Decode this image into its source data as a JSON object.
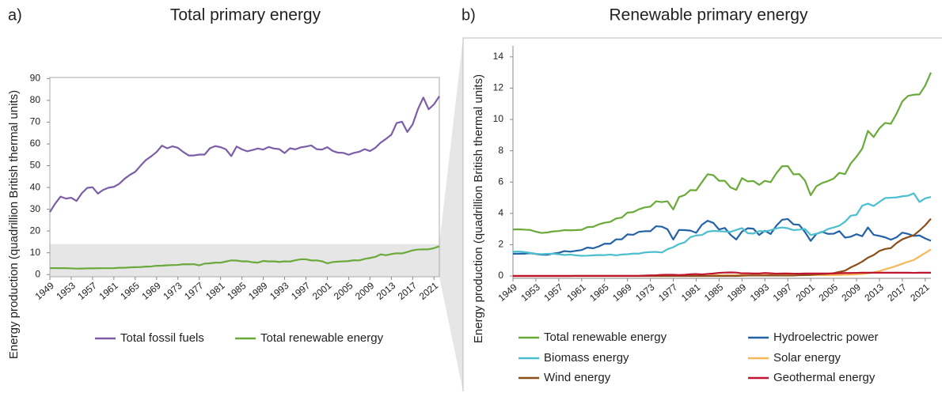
{
  "chart_data": [
    {
      "type": "line",
      "panel_label": "a)",
      "title": "Total primary energy",
      "y_label": "Energy production (quadrillion British thermal units)",
      "x": [
        1949,
        1950,
        1951,
        1952,
        1953,
        1954,
        1955,
        1956,
        1957,
        1958,
        1959,
        1960,
        1961,
        1962,
        1963,
        1964,
        1965,
        1966,
        1967,
        1968,
        1969,
        1970,
        1971,
        1972,
        1973,
        1974,
        1975,
        1976,
        1977,
        1978,
        1979,
        1980,
        1981,
        1982,
        1983,
        1984,
        1985,
        1986,
        1987,
        1988,
        1989,
        1990,
        1991,
        1992,
        1993,
        1994,
        1995,
        1996,
        1997,
        1998,
        1999,
        2000,
        2001,
        2002,
        2003,
        2004,
        2005,
        2006,
        2007,
        2008,
        2009,
        2010,
        2011,
        2012,
        2013,
        2014,
        2015,
        2016,
        2017,
        2018,
        2019,
        2020,
        2021,
        2022
      ],
      "xlim": [
        1949,
        2022
      ],
      "xticks": [
        1949,
        1953,
        1957,
        1961,
        1965,
        1969,
        1973,
        1977,
        1981,
        1985,
        1989,
        1993,
        1997,
        2001,
        2005,
        2009,
        2013,
        2017,
        2021
      ],
      "ylim": [
        -1,
        90.5
      ],
      "yticks": [
        0,
        10,
        20,
        30,
        40,
        50,
        60,
        70,
        80,
        90
      ],
      "grid": false,
      "highlight_ylim": [
        0,
        14
      ],
      "series": [
        {
          "name": "Total fossil fuels",
          "color": "#7b5ea7",
          "values": [
            28.7,
            32.6,
            35.8,
            34.9,
            35.3,
            33.8,
            37.4,
            39.8,
            40.1,
            37.2,
            38.9,
            39.9,
            40.3,
            41.7,
            44.0,
            45.8,
            47.2,
            50.0,
            52.6,
            54.3,
            56.3,
            59.2,
            58.0,
            58.9,
            58.2,
            56.3,
            54.7,
            54.7,
            55.1,
            55.1,
            58.0,
            59.0,
            58.5,
            57.5,
            54.4,
            58.8,
            57.5,
            56.6,
            57.2,
            57.9,
            57.4,
            58.6,
            57.9,
            57.6,
            55.8,
            58.0,
            57.5,
            58.4,
            58.8,
            59.3,
            57.6,
            57.4,
            58.5,
            56.8,
            56.0,
            55.9,
            55.0,
            55.9,
            56.4,
            57.6,
            56.7,
            58.2,
            60.6,
            62.3,
            64.2,
            69.6,
            70.2,
            65.5,
            69.0,
            76.0,
            81.3,
            75.9,
            78.2,
            81.9
          ]
        },
        {
          "name": "Total renewable energy",
          "color": "#6aaa3a",
          "values": [
            2.97,
            2.98,
            2.96,
            2.94,
            2.83,
            2.75,
            2.78,
            2.85,
            2.87,
            2.93,
            2.92,
            2.93,
            2.95,
            3.12,
            3.14,
            3.3,
            3.4,
            3.46,
            3.67,
            3.73,
            4.05,
            4.08,
            4.26,
            4.38,
            4.43,
            4.77,
            4.72,
            4.77,
            4.25,
            5.04,
            5.17,
            5.49,
            5.47,
            5.99,
            6.5,
            6.44,
            6.08,
            6.08,
            5.66,
            5.5,
            6.25,
            6.04,
            6.07,
            5.82,
            6.08,
            5.99,
            6.56,
            7.01,
            7.02,
            6.49,
            6.51,
            6.1,
            5.16,
            5.73,
            5.94,
            6.06,
            6.22,
            6.59,
            6.51,
            7.19,
            7.62,
            8.13,
            9.27,
            8.88,
            9.43,
            9.78,
            9.72,
            10.37,
            11.15,
            11.5,
            11.58,
            11.6,
            12.16,
            13.0
          ]
        }
      ]
    },
    {
      "type": "line",
      "panel_label": "b)",
      "title": "Renewable primary energy",
      "y_label": "Energy production (quadrillion British thermal units)",
      "x": [
        1949,
        1950,
        1951,
        1952,
        1953,
        1954,
        1955,
        1956,
        1957,
        1958,
        1959,
        1960,
        1961,
        1962,
        1963,
        1964,
        1965,
        1966,
        1967,
        1968,
        1969,
        1970,
        1971,
        1972,
        1973,
        1974,
        1975,
        1976,
        1977,
        1978,
        1979,
        1980,
        1981,
        1982,
        1983,
        1984,
        1985,
        1986,
        1987,
        1988,
        1989,
        1990,
        1991,
        1992,
        1993,
        1994,
        1995,
        1996,
        1997,
        1998,
        1999,
        2000,
        2001,
        2002,
        2003,
        2004,
        2005,
        2006,
        2007,
        2008,
        2009,
        2010,
        2011,
        2012,
        2013,
        2014,
        2015,
        2016,
        2017,
        2018,
        2019,
        2020,
        2021,
        2022
      ],
      "xlim": [
        1949,
        2022
      ],
      "xticks": [
        1949,
        1953,
        1957,
        1961,
        1965,
        1969,
        1973,
        1977,
        1981,
        1985,
        1989,
        1993,
        1997,
        2001,
        2005,
        2009,
        2013,
        2017,
        2021
      ],
      "ylim": [
        -0.15,
        14.7
      ],
      "yticks": [
        0,
        2,
        4,
        6,
        8,
        10,
        12,
        14
      ],
      "grid": false,
      "series": [
        {
          "name": "Total renewable energy",
          "color": "#6aaa3a",
          "values": [
            2.97,
            2.98,
            2.96,
            2.94,
            2.83,
            2.75,
            2.78,
            2.85,
            2.87,
            2.93,
            2.92,
            2.93,
            2.95,
            3.12,
            3.14,
            3.3,
            3.4,
            3.46,
            3.67,
            3.73,
            4.05,
            4.08,
            4.26,
            4.38,
            4.43,
            4.77,
            4.72,
            4.77,
            4.25,
            5.04,
            5.17,
            5.49,
            5.47,
            5.99,
            6.5,
            6.44,
            6.08,
            6.08,
            5.66,
            5.5,
            6.25,
            6.04,
            6.07,
            5.82,
            6.08,
            5.99,
            6.56,
            7.01,
            7.02,
            6.49,
            6.51,
            6.1,
            5.16,
            5.73,
            5.94,
            6.06,
            6.22,
            6.59,
            6.51,
            7.19,
            7.62,
            8.13,
            9.27,
            8.88,
            9.43,
            9.78,
            9.72,
            10.37,
            11.15,
            11.5,
            11.58,
            11.6,
            12.16,
            13.0
          ]
        },
        {
          "name": "Hydroelectric power",
          "color": "#2462a8",
          "values": [
            1.42,
            1.42,
            1.43,
            1.46,
            1.41,
            1.36,
            1.36,
            1.43,
            1.48,
            1.59,
            1.55,
            1.61,
            1.66,
            1.82,
            1.77,
            1.89,
            2.06,
            2.06,
            2.34,
            2.34,
            2.66,
            2.63,
            2.82,
            2.86,
            2.86,
            3.18,
            3.15,
            2.98,
            2.33,
            2.94,
            2.93,
            2.9,
            2.76,
            3.27,
            3.53,
            3.39,
            2.97,
            3.07,
            2.63,
            2.33,
            2.84,
            3.05,
            3.02,
            2.62,
            2.89,
            2.68,
            3.21,
            3.59,
            3.64,
            3.3,
            3.27,
            2.81,
            2.24,
            2.69,
            2.82,
            2.69,
            2.7,
            2.87,
            2.45,
            2.51,
            2.67,
            2.54,
            3.1,
            2.63,
            2.56,
            2.47,
            2.32,
            2.47,
            2.77,
            2.69,
            2.56,
            2.59,
            2.4,
            2.25
          ]
        },
        {
          "name": "Biomass energy",
          "color": "#4bbfcf",
          "values": [
            1.55,
            1.56,
            1.53,
            1.48,
            1.42,
            1.39,
            1.42,
            1.42,
            1.39,
            1.34,
            1.37,
            1.32,
            1.29,
            1.3,
            1.32,
            1.34,
            1.33,
            1.37,
            1.32,
            1.37,
            1.39,
            1.43,
            1.43,
            1.5,
            1.53,
            1.54,
            1.5,
            1.71,
            1.84,
            2.04,
            2.15,
            2.48,
            2.59,
            2.62,
            2.83,
            2.88,
            2.86,
            2.84,
            2.82,
            2.94,
            3.06,
            2.73,
            2.71,
            2.87,
            2.85,
            2.92,
            3.04,
            3.1,
            3.05,
            2.93,
            2.96,
            3.01,
            2.62,
            2.7,
            2.8,
            3.0,
            3.1,
            3.21,
            3.47,
            3.85,
            3.91,
            4.49,
            4.62,
            4.47,
            4.73,
            4.98,
            5.0,
            5.02,
            5.09,
            5.13,
            5.28,
            4.73,
            4.96,
            5.05
          ]
        },
        {
          "name": "Solar energy",
          "color": "#f8b85a",
          "values": [
            0,
            0,
            0,
            0,
            0,
            0,
            0,
            0,
            0,
            0,
            0,
            0,
            0,
            0,
            0,
            0,
            0,
            0,
            0,
            0,
            0,
            0,
            0,
            0,
            0,
            0,
            0,
            0,
            0,
            0,
            0,
            0,
            0,
            0,
            0,
            0.05,
            0.05,
            0.05,
            0.05,
            0.05,
            0.06,
            0.06,
            0.06,
            0.06,
            0.06,
            0.06,
            0.06,
            0.06,
            0.06,
            0.06,
            0.06,
            0.06,
            0.06,
            0.06,
            0.06,
            0.06,
            0.06,
            0.07,
            0.08,
            0.09,
            0.1,
            0.13,
            0.17,
            0.23,
            0.31,
            0.43,
            0.53,
            0.65,
            0.78,
            0.91,
            1.02,
            1.25,
            1.47,
            1.7
          ]
        },
        {
          "name": "Wind energy",
          "color": "#8b4d1a",
          "values": [
            0,
            0,
            0,
            0,
            0,
            0,
            0,
            0,
            0,
            0,
            0,
            0,
            0,
            0,
            0,
            0,
            0,
            0,
            0,
            0,
            0,
            0,
            0,
            0,
            0,
            0,
            0,
            0,
            0,
            0,
            0,
            0,
            0,
            0,
            0,
            0,
            0,
            0,
            0,
            0,
            0.02,
            0.03,
            0.03,
            0.03,
            0.03,
            0.04,
            0.03,
            0.03,
            0.03,
            0.03,
            0.05,
            0.06,
            0.07,
            0.11,
            0.12,
            0.14,
            0.18,
            0.26,
            0.34,
            0.55,
            0.72,
            0.92,
            1.17,
            1.34,
            1.6,
            1.73,
            1.78,
            2.1,
            2.34,
            2.48,
            2.6,
            2.9,
            3.24,
            3.66
          ]
        },
        {
          "name": "Geothermal energy",
          "color": "#c0152f",
          "values": [
            0,
            0,
            0,
            0,
            0,
            0,
            0,
            0,
            0,
            0,
            0,
            0.01,
            0.01,
            0.01,
            0.01,
            0.01,
            0.01,
            0.01,
            0.01,
            0.01,
            0.01,
            0.01,
            0.01,
            0.03,
            0.04,
            0.05,
            0.07,
            0.08,
            0.08,
            0.06,
            0.08,
            0.11,
            0.12,
            0.1,
            0.13,
            0.16,
            0.2,
            0.22,
            0.23,
            0.22,
            0.17,
            0.17,
            0.16,
            0.16,
            0.19,
            0.17,
            0.15,
            0.16,
            0.16,
            0.15,
            0.15,
            0.16,
            0.16,
            0.16,
            0.16,
            0.16,
            0.16,
            0.18,
            0.19,
            0.19,
            0.2,
            0.21,
            0.21,
            0.21,
            0.21,
            0.21,
            0.21,
            0.21,
            0.21,
            0.21,
            0.2,
            0.21,
            0.21,
            0.21
          ]
        }
      ]
    }
  ]
}
